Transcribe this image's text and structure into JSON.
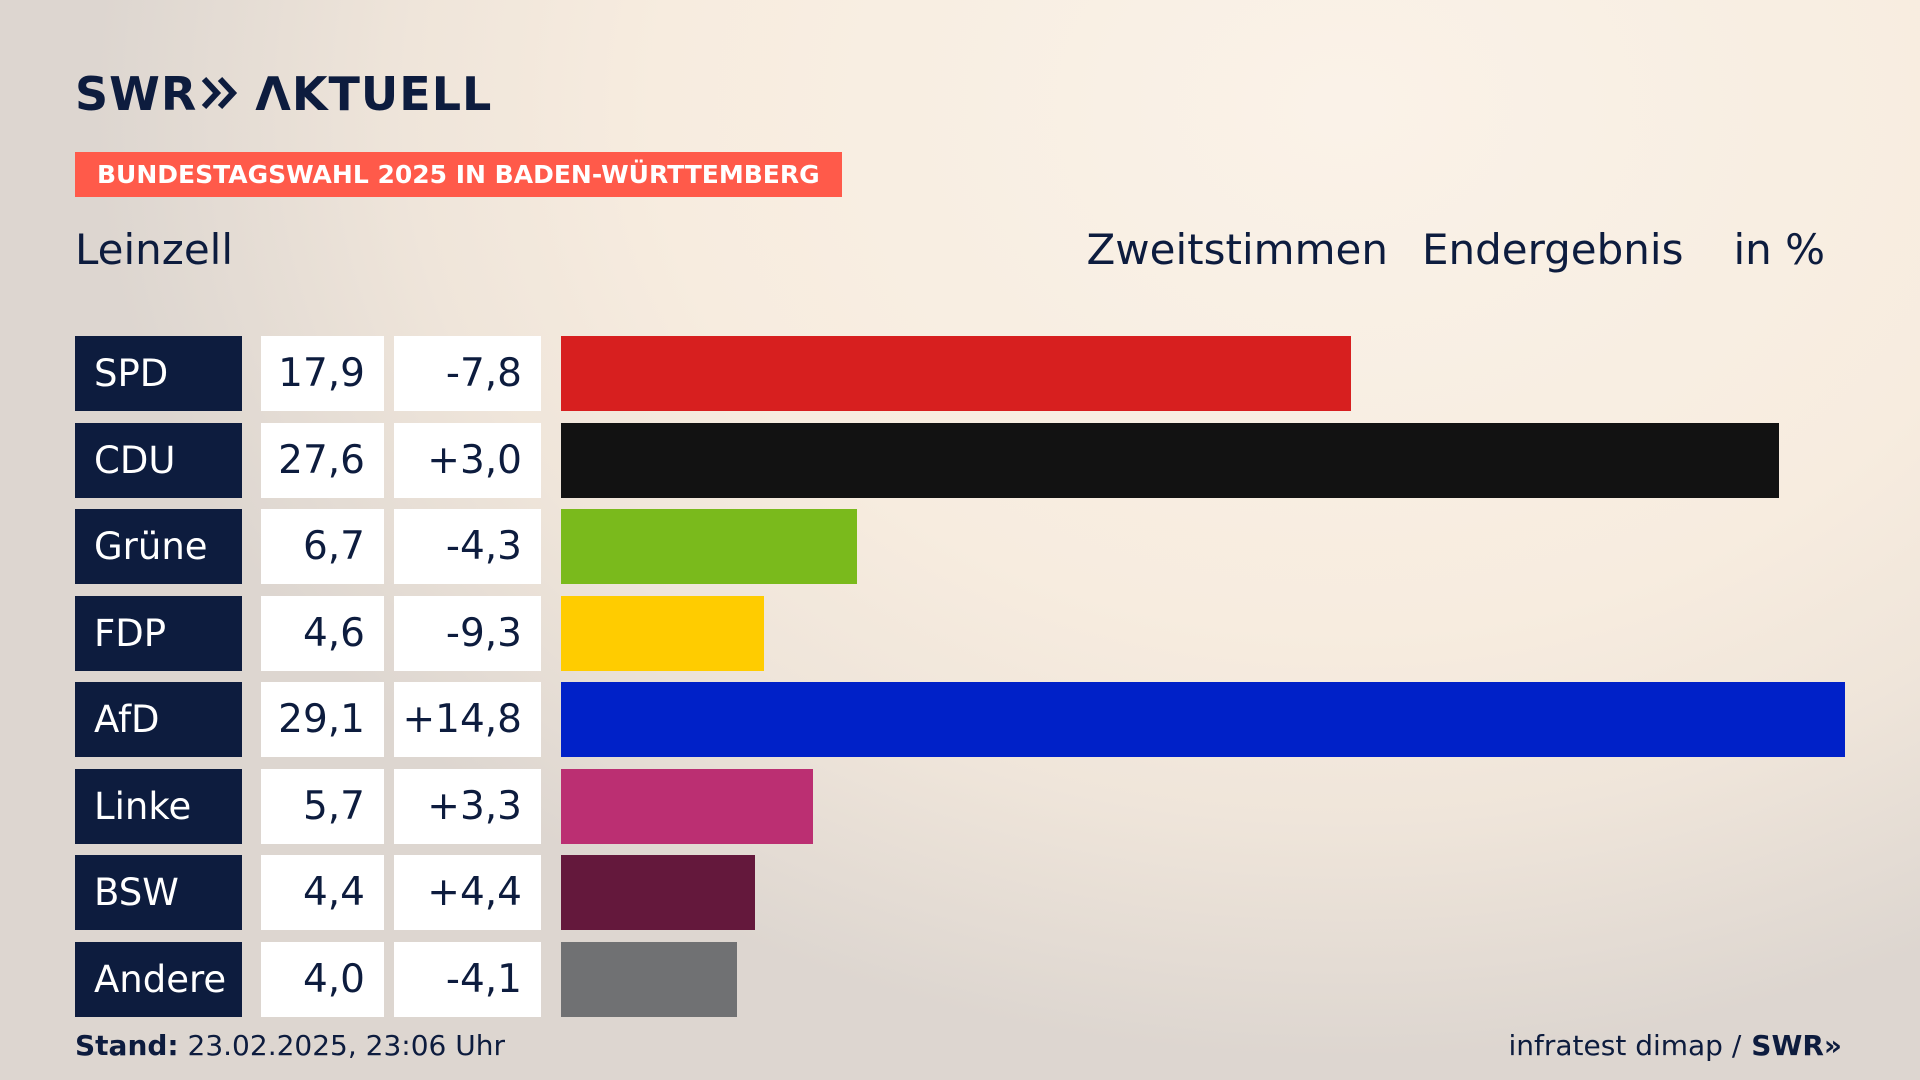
{
  "logo": {
    "left_text": "SWR",
    "chevrons": "»",
    "right_text": "ΛKTUELL"
  },
  "badge": "BUNDESTAGSWAHL 2025 IN BADEN-WÜRTTEMBERG",
  "place": "Leinzell",
  "header": {
    "vote_type": "Zweitstimmen",
    "status": "Endergebnis",
    "unit": "in %"
  },
  "footer": {
    "stand_label": "Stand:",
    "stand_value": "23.02.2025, 23:06 Uhr",
    "source": "infratest dimap /",
    "source_logo": "SWR»"
  },
  "chart_data": {
    "type": "bar",
    "orientation": "horizontal",
    "categories": [
      "SPD",
      "CDU",
      "Grüne",
      "FDP",
      "AfD",
      "Linke",
      "BSW",
      "Andere"
    ],
    "values": [
      "17,9",
      "27,6",
      "6,7",
      "4,6",
      "29,1",
      "5,7",
      "4,4",
      "4,0"
    ],
    "numeric_values": [
      17.9,
      27.6,
      6.7,
      4.6,
      29.1,
      5.7,
      4.4,
      4.0
    ],
    "diffs": [
      "-7,8",
      "+3,0",
      "-4,3",
      "-9,3",
      "+14,8",
      "+3,3",
      "+4,4",
      "-4,1"
    ],
    "colors": [
      "#d71f1f",
      "#121212",
      "#7aba1c",
      "#ffcc00",
      "#0021c8",
      "#bb2f72",
      "#64183c",
      "#707173"
    ],
    "xlim": [
      0,
      29.1
    ]
  }
}
